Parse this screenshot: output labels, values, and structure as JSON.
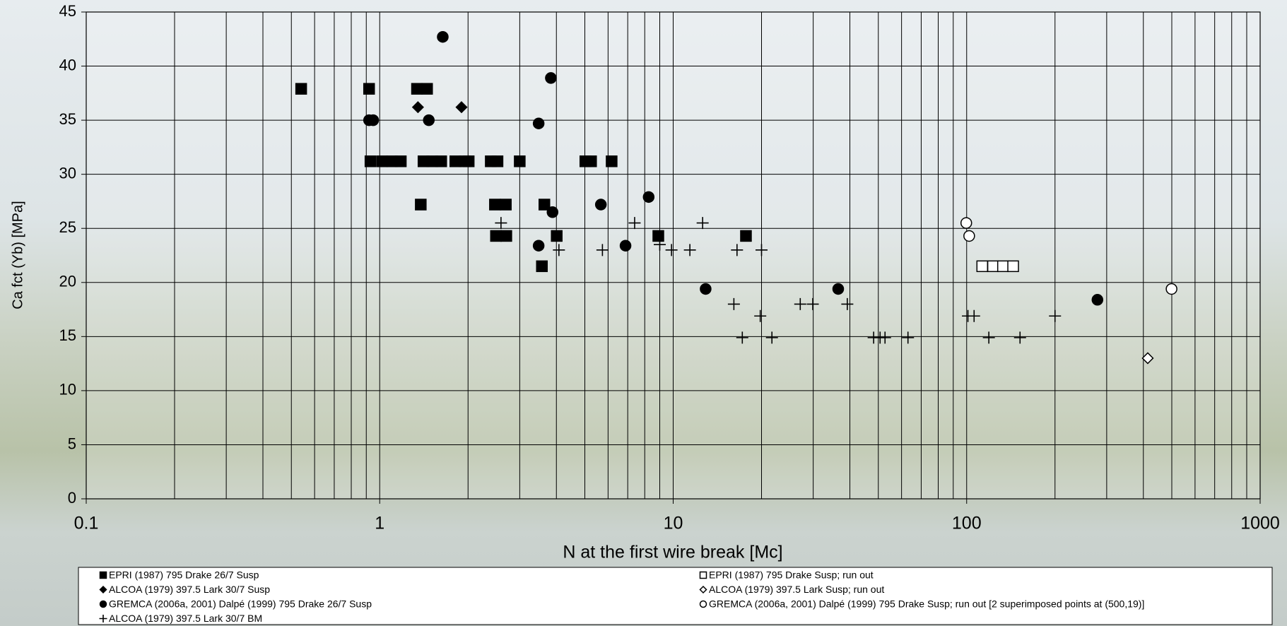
{
  "chart_data": {
    "type": "scatter",
    "x_label": "N at the first wire break [Mc]",
    "y_label": "Ca fct (Yb) [MPa]",
    "xlog": true,
    "xlim": [
      0.1,
      1000
    ],
    "xticks": [
      0.1,
      1,
      10,
      100,
      1000
    ],
    "ylim": [
      0,
      45
    ],
    "yticks": [
      0,
      5,
      10,
      15,
      20,
      25,
      30,
      35,
      40,
      45
    ],
    "grid": true,
    "minor_grid": true,
    "legend": "bottom",
    "series": [
      {
        "name": "EPRI (1987) 795 Drake 26/7 Susp",
        "color": "#000000",
        "marker": "square",
        "x": [
          0.54,
          0.92,
          1.34,
          1.45,
          0.93,
          1.02,
          1.1,
          1.18,
          1.41,
          1.51,
          1.62,
          1.81,
          1.95,
          2.01,
          2.39,
          2.52,
          3.0,
          5.02,
          5.25,
          6.17,
          1.38,
          2.47,
          2.69,
          3.64,
          2.49,
          2.7,
          4.01,
          8.9,
          17.7,
          3.57
        ],
        "y": [
          37.9,
          37.9,
          37.9,
          37.9,
          31.2,
          31.2,
          31.2,
          31.2,
          31.2,
          31.2,
          31.2,
          31.2,
          31.2,
          31.2,
          31.2,
          31.2,
          31.2,
          31.2,
          31.2,
          31.2,
          27.2,
          27.2,
          27.2,
          27.2,
          24.3,
          24.3,
          24.3,
          24.3,
          24.3,
          21.5
        ]
      },
      {
        "name": "EPRI (1987) 795 Drake Susp; run out",
        "color": "#000000",
        "marker": "square-open",
        "x": [
          113,
          123,
          133,
          144
        ],
        "y": [
          21.5,
          21.5,
          21.5,
          21.5
        ]
      },
      {
        "name": "ALCOA (1979) 397.5 Lark 30/7 Susp",
        "color": "#000000",
        "marker": "diamond",
        "x": [
          1.35,
          1.9
        ],
        "y": [
          36.2,
          36.2
        ]
      },
      {
        "name": "ALCOA (1979) 397.5 Lark Susp; run out",
        "color": "#000000",
        "marker": "diamond-open",
        "x": [
          414
        ],
        "y": [
          13.0
        ]
      },
      {
        "name": "GREMCA (2006a, 2001) Dalpé (1999) 795 Drake 26/7 Susp",
        "color": "#000000",
        "marker": "circle",
        "x": [
          1.64,
          0.92,
          0.95,
          1.47,
          3.48,
          3.83,
          3.88,
          3.48,
          5.67,
          6.88,
          8.25,
          12.9,
          36.5,
          279
        ],
        "y": [
          42.7,
          35.0,
          35.0,
          35.0,
          34.7,
          38.9,
          26.5,
          23.4,
          27.2,
          23.4,
          27.9,
          19.4,
          19.4,
          18.4
        ]
      },
      {
        "name": "GREMCA (2006a, 2001) Dalpé (1999) 795 Drake Susp; run out [2 superimposed points at (500,19)]",
        "color": "#000000",
        "marker": "circle-open",
        "x": [
          99.7,
          102,
          499
        ],
        "y": [
          25.5,
          24.3,
          19.4
        ]
      },
      {
        "name": "ALCOA (1979) 397.5 Lark 30/7 BM",
        "color": "#000000",
        "marker": "plus",
        "x": [
          2.59,
          4.08,
          5.74,
          7.39,
          9.0,
          9.87,
          11.4,
          12.6,
          16.5,
          20.0,
          16.1,
          19.8,
          17.2,
          21.7,
          27.1,
          29.9,
          39.2,
          48.2,
          50.7,
          52.7,
          63.1,
          101,
          106,
          119,
          152,
          200
        ],
        "y": [
          25.5,
          23.0,
          23.0,
          25.5,
          23.5,
          23.0,
          23.0,
          25.5,
          23.0,
          23.0,
          18.0,
          16.9,
          14.9,
          14.9,
          18.0,
          18.0,
          18.0,
          14.9,
          14.9,
          14.9,
          14.9,
          16.9,
          16.9,
          14.9,
          14.9,
          16.9
        ]
      }
    ]
  }
}
